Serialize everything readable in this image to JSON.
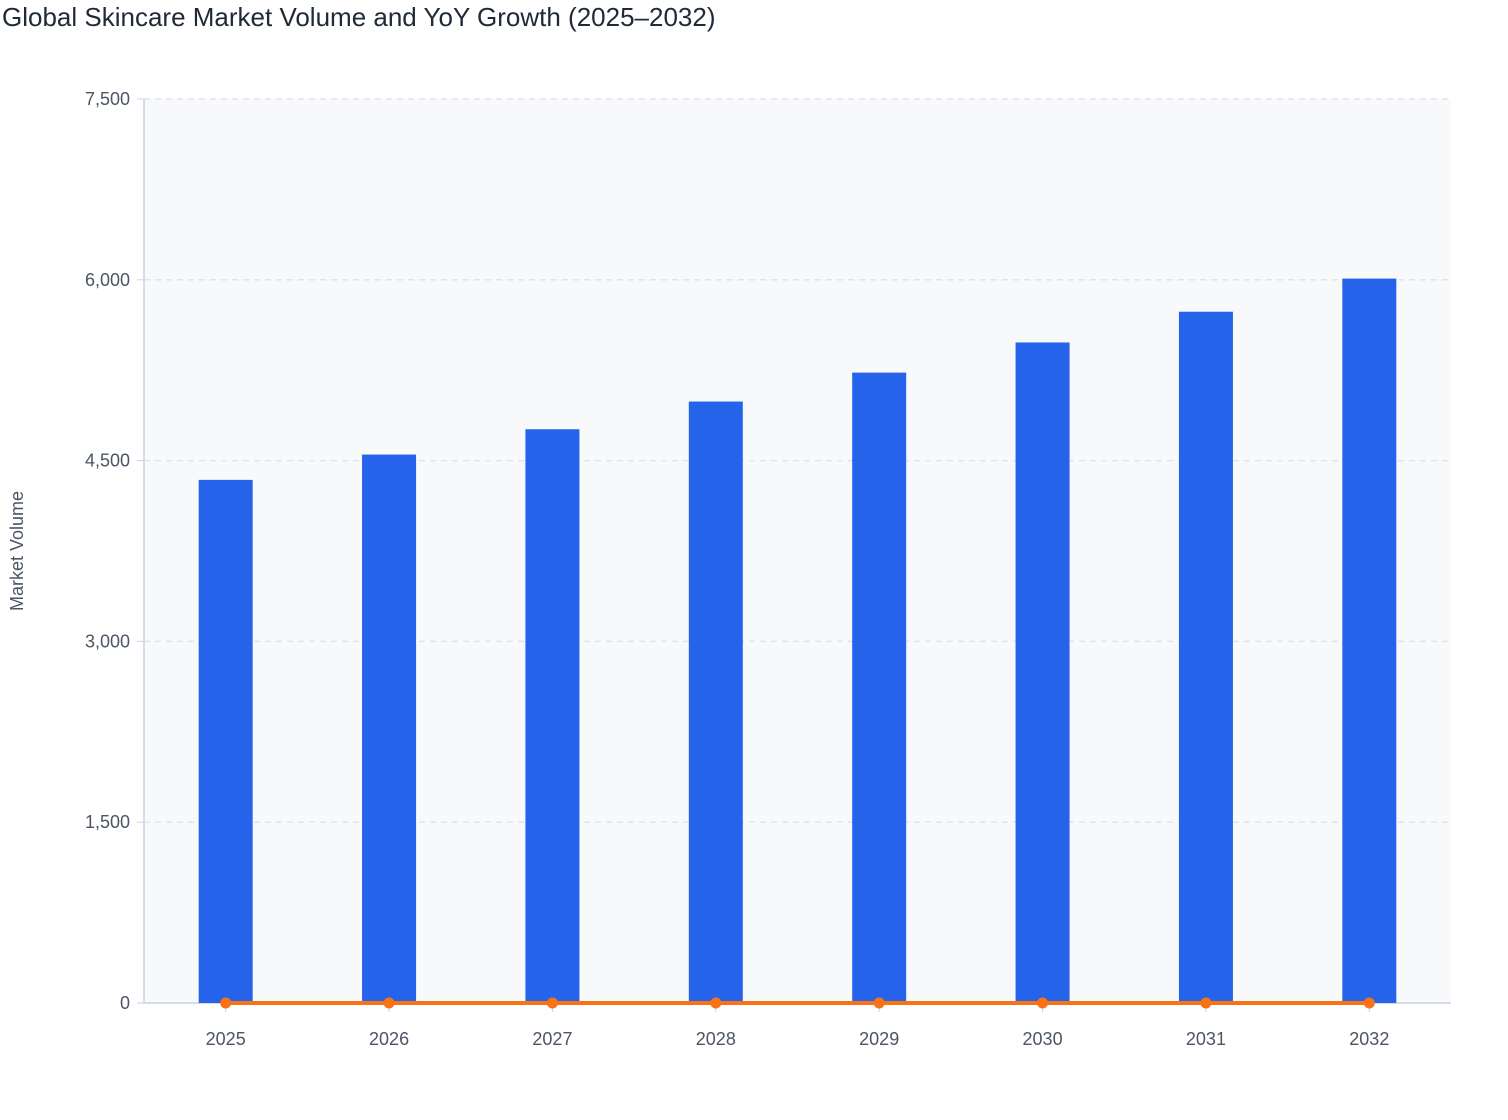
{
  "chart_data": {
    "type": "bar",
    "title": "Global Skincare Market Volume and YoY Growth (2025–2032)",
    "xlabel": "",
    "ylabel": "Market Volume",
    "categories": [
      "2025",
      "2026",
      "2027",
      "2028",
      "2029",
      "2030",
      "2031",
      "2032"
    ],
    "ylim": [
      0,
      7500
    ],
    "yticks": [
      0,
      1500,
      3000,
      4500,
      6000,
      7500
    ],
    "ytick_labels": [
      "0",
      "1,500",
      "3,000",
      "4,500",
      "6,000",
      "7,500"
    ],
    "grid": true,
    "series": [
      {
        "type": "bar",
        "values": [
          4340,
          4550,
          4760,
          4990,
          5230,
          5480,
          5735,
          6010
        ],
        "color": "#2563eb"
      },
      {
        "type": "line",
        "values": [
          0,
          0,
          0,
          0,
          0,
          0,
          0,
          0
        ],
        "color": "#f97316"
      }
    ]
  }
}
